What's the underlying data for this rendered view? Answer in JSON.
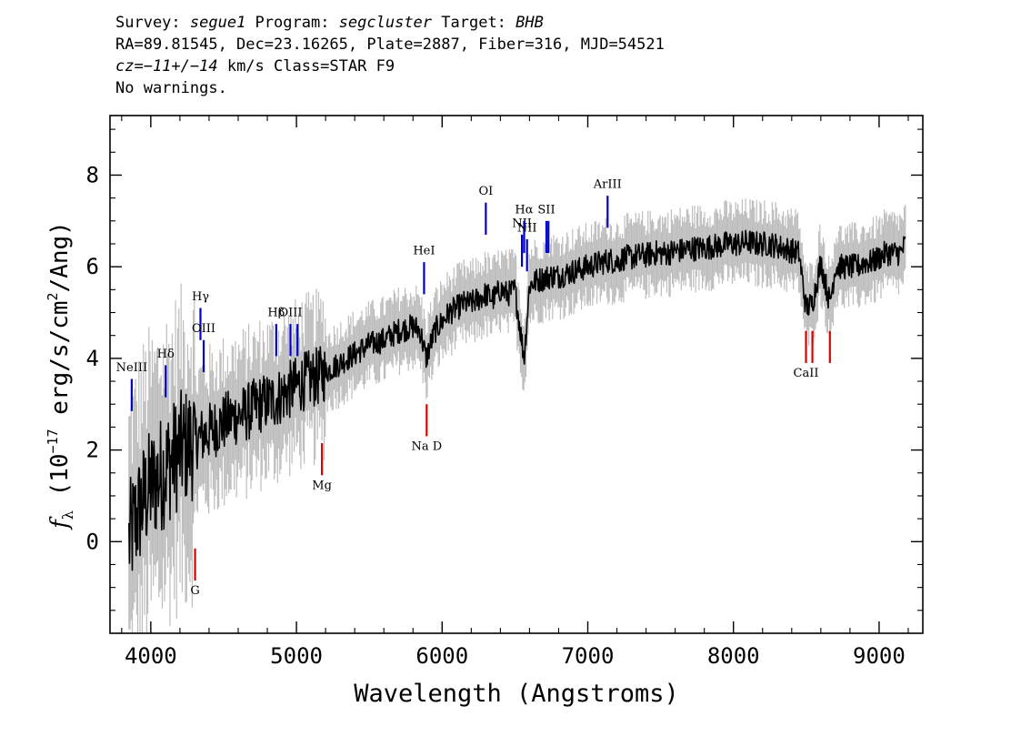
{
  "header": {
    "line1": [
      {
        "text": "Survey: ",
        "italic": false
      },
      {
        "text": "segue1",
        "italic": true
      },
      {
        "text": " Program: ",
        "italic": false
      },
      {
        "text": "segcluster",
        "italic": true
      },
      {
        "text": " Target: ",
        "italic": false
      },
      {
        "text": "BHB",
        "italic": true
      }
    ],
    "line2": "RA=89.81545, Dec=23.16265, Plate=2887, Fiber=316, MJD=54521",
    "line3": [
      {
        "text": "cz=−11+/−14",
        "italic": true
      },
      {
        "text": " km/s Class=STAR F9",
        "italic": false
      }
    ],
    "line4": "No warnings."
  },
  "colors": {
    "spectrum": "#000000",
    "error_band": "#bdbdbd",
    "emission_marker": "#0000cc",
    "absorption_marker": "#dd0000",
    "axes": "#000000"
  },
  "chart_data": {
    "type": "line",
    "xlabel": "Wavelength (Angstroms)",
    "ylabel": "f_λ (10^-17 erg/s/cm^2/Ang)",
    "xlim": [
      3720,
      9300
    ],
    "ylim": [
      -2.0,
      9.3
    ],
    "xticks": [
      4000,
      5000,
      6000,
      7000,
      8000,
      9000
    ],
    "yticks": [
      0,
      2,
      4,
      6,
      8
    ],
    "grid": false,
    "series": [
      {
        "role": "flux",
        "x": [
          3850,
          3900,
          3950,
          4000,
          4050,
          4100,
          4150,
          4200,
          4250,
          4300,
          4350,
          4400,
          4450,
          4500,
          4550,
          4600,
          4650,
          4700,
          4750,
          4800,
          4850,
          4900,
          4950,
          5000,
          5050,
          5100,
          5150,
          5200,
          5250,
          5300,
          5350,
          5400,
          5450,
          5500,
          5550,
          5600,
          5650,
          5700,
          5750,
          5800,
          5850,
          5890,
          5920,
          5950,
          6000,
          6050,
          6100,
          6150,
          6200,
          6250,
          6300,
          6350,
          6400,
          6450,
          6500,
          6563,
          6600,
          6650,
          6700,
          6750,
          6800,
          6850,
          6900,
          6950,
          7000,
          7050,
          7100,
          7150,
          7200,
          7250,
          7300,
          7350,
          7400,
          7450,
          7500,
          7550,
          7600,
          7650,
          7700,
          7750,
          7800,
          7850,
          7900,
          7950,
          8000,
          8050,
          8100,
          8150,
          8200,
          8250,
          8300,
          8350,
          8400,
          8450,
          8498,
          8542,
          8600,
          8662,
          8700,
          8750,
          8800,
          8850,
          8900,
          8950,
          9000,
          9050,
          9100,
          9150,
          9180
        ],
        "y": [
          0.0,
          0.5,
          0.9,
          1.2,
          1.4,
          1.6,
          1.8,
          2.0,
          2.1,
          2.2,
          2.3,
          2.4,
          2.5,
          2.6,
          2.7,
          2.75,
          2.8,
          2.9,
          3.0,
          3.05,
          3.1,
          3.2,
          3.3,
          3.4,
          3.5,
          3.55,
          3.6,
          3.7,
          3.8,
          3.9,
          4.0,
          4.1,
          4.2,
          4.3,
          4.35,
          4.4,
          4.5,
          4.6,
          4.65,
          4.7,
          4.6,
          4.0,
          4.3,
          4.6,
          4.8,
          5.0,
          5.1,
          5.2,
          5.2,
          5.3,
          5.4,
          5.3,
          5.5,
          5.4,
          5.5,
          4.0,
          5.6,
          5.7,
          5.75,
          5.8,
          5.8,
          5.85,
          5.9,
          5.95,
          6.0,
          6.05,
          6.1,
          6.15,
          6.1,
          6.2,
          6.2,
          6.25,
          6.25,
          6.3,
          6.3,
          6.3,
          6.35,
          6.35,
          6.4,
          6.4,
          6.4,
          6.45,
          6.45,
          6.5,
          6.5,
          6.5,
          6.55,
          6.5,
          6.5,
          6.5,
          6.45,
          6.4,
          6.35,
          6.3,
          5.1,
          5.2,
          6.1,
          5.2,
          6.0,
          6.0,
          6.0,
          6.0,
          6.1,
          6.1,
          6.2,
          6.3,
          6.3,
          6.3,
          6.5
        ]
      }
    ],
    "line_markers": [
      {
        "label": "NeIII",
        "x": 3869,
        "type": "emission",
        "y0": 2.85,
        "y1": 3.55,
        "label_y": 3.72
      },
      {
        "label": "Hδ",
        "x": 4102,
        "type": "emission",
        "y0": 3.15,
        "y1": 3.85,
        "label_y": 4.02
      },
      {
        "label": "Hγ",
        "x": 4341,
        "type": "emission",
        "y0": 4.4,
        "y1": 5.1,
        "label_y": 5.27
      },
      {
        "label": "OIII",
        "x": 4363,
        "type": "emission",
        "y0": 3.7,
        "y1": 4.4,
        "label_y": 4.57
      },
      {
        "label": "Hβ",
        "x": 4861,
        "type": "emission",
        "y0": 4.05,
        "y1": 4.75,
        "label_y": 4.92
      },
      {
        "label": "OIII",
        "x": 4959,
        "type": "emission",
        "y0": 4.05,
        "y1": 4.75,
        "label_y": 4.92
      },
      {
        "label": "OIII",
        "x": 5007,
        "type": "emission",
        "y0": 4.05,
        "y1": 4.75,
        "label_y": 4.92
      },
      {
        "label": "HeI",
        "x": 5876,
        "type": "emission",
        "y0": 5.4,
        "y1": 6.1,
        "label_y": 6.27
      },
      {
        "label": "OI",
        "x": 6300,
        "type": "emission",
        "y0": 6.7,
        "y1": 7.4,
        "label_y": 7.57
      },
      {
        "label": "NII",
        "x": 6548,
        "type": "emission",
        "y0": 6.0,
        "y1": 6.7,
        "label_y": 6.87
      },
      {
        "label": "Hα",
        "x": 6563,
        "type": "emission",
        "y0": 6.3,
        "y1": 7.0,
        "label_y": 7.17
      },
      {
        "label": "NII",
        "x": 6583,
        "type": "emission",
        "y0": 5.9,
        "y1": 6.6,
        "label_y": 6.77
      },
      {
        "label": "SII",
        "x": 6716,
        "type": "emission",
        "y0": 6.3,
        "y1": 7.0,
        "label_y": 7.17
      },
      {
        "label": "SII",
        "x": 6730,
        "type": "emission",
        "y0": 6.3,
        "y1": 7.0,
        "label_y": 7.17
      },
      {
        "label": "ArIII",
        "x": 7136,
        "type": "emission",
        "y0": 6.85,
        "y1": 7.55,
        "label_y": 7.72
      },
      {
        "label": "G",
        "x": 4304,
        "type": "absorption",
        "y0": -0.85,
        "y1": -0.15,
        "label_y": -1.15
      },
      {
        "label": "Mg",
        "x": 5175,
        "type": "absorption",
        "y0": 1.45,
        "y1": 2.15,
        "label_y": 1.15
      },
      {
        "label": "Na D",
        "x": 5894,
        "type": "absorption",
        "y0": 2.3,
        "y1": 3.0,
        "label_y": 2.0
      },
      {
        "label": "CaII",
        "x": 8498,
        "type": "absorption",
        "y0": 3.9,
        "y1": 4.6,
        "label_y": 3.6
      },
      {
        "label": "CaII",
        "x": 8542,
        "type": "absorption",
        "y0": 3.9,
        "y1": 4.6,
        "label_y": 3.6
      },
      {
        "label": "CaII",
        "x": 8662,
        "type": "absorption",
        "y0": 3.9,
        "y1": 4.6,
        "label_y": 3.6
      }
    ]
  }
}
